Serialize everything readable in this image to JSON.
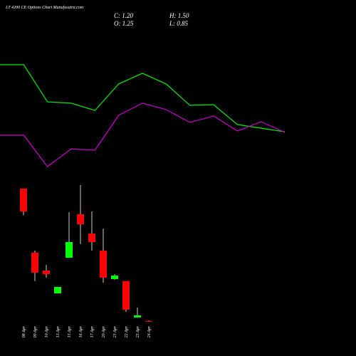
{
  "chart_data": [
    {
      "type": "candlestick",
      "title": "LT 4200 CE Options Chart Munafasutra.com",
      "ohlc_labels": [
        "C: 1.20",
        "H: 1.50",
        "O: 1.25",
        "L: 0.85"
      ],
      "categories": [
        "08 Apr",
        "09 Apr",
        "10 Apr",
        "13 Apr",
        "15 Apr",
        "16 Apr",
        "17 Apr",
        "20 Apr",
        "21 Apr",
        "22 Apr",
        "23 Apr",
        "24 Apr"
      ],
      "open": [
        58.5,
        30.8,
        23.1,
        13.2,
        28.6,
        47.4,
        39.1,
        31.7,
        19.4,
        18.5,
        2.8,
        1.25
      ],
      "high": [
        58.5,
        31.7,
        25.5,
        16.0,
        48.3,
        60.0,
        48.6,
        41.2,
        21.5,
        18.5,
        7.1,
        1.5
      ],
      "low": [
        47.0,
        18.5,
        20.0,
        13.2,
        28.6,
        34.5,
        31.7,
        17.8,
        19.1,
        5.2,
        2.8,
        0.85
      ],
      "close": [
        48.6,
        22.2,
        21.5,
        16.0,
        35.4,
        43.1,
        35.4,
        20.0,
        20.9,
        6.2,
        3.7,
        1.2
      ],
      "up_color": "#00ff00",
      "down_color": "#ff0000",
      "ylim": [
        0,
        60
      ]
    },
    {
      "type": "line",
      "series": [
        {
          "color": "#00ee00",
          "values": [
            69.7,
            69.7,
            52.3,
            51.7,
            48.3,
            60.7,
            65.7,
            60.7,
            50.7,
            51.0,
            41.7,
            40.0,
            38.3
          ]
        },
        {
          "color": "#cc00cc",
          "values": [
            36.7,
            36.7,
            22.0,
            30.3,
            29.7,
            46.0,
            51.7,
            48.7,
            42.7,
            45.7,
            38.7,
            43.0,
            38.0
          ]
        }
      ],
      "ylim": [
        0,
        100
      ]
    }
  ]
}
